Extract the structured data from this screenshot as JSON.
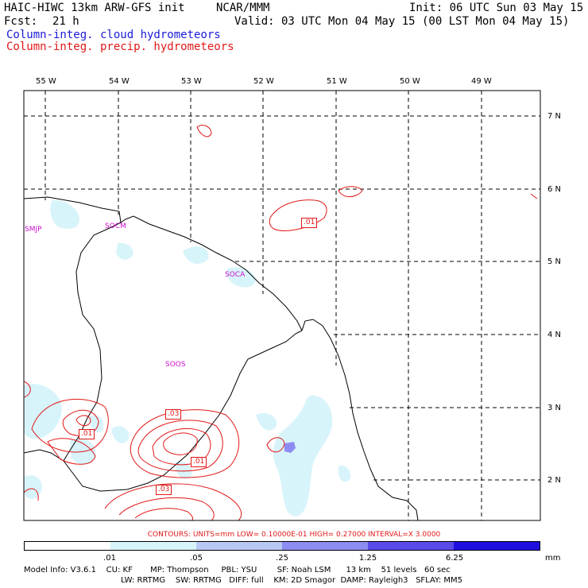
{
  "header": {
    "model": "HAIC-HIWC 13km ARW-GFS init",
    "center": "NCAR/MMM",
    "init": "Init: 06 UTC Sun 03 May 15",
    "fcst_label": "Fcst:",
    "fcst_value": "21 h",
    "valid": "Valid: 03 UTC Mon 04 May 15 (00 LST Mon 04 May 15)",
    "field_cloud": "Column-integ. cloud hydrometeors",
    "field_precip": "Column-integ. precip. hydrometeors"
  },
  "colors": {
    "cloud_title": "#1a1ad8",
    "precip": "#e01818",
    "stations": "#d010d0",
    "fill_01": "#d8f4fb",
    "fill_05": "#b9c8f3",
    "fill_25": "#8d8cf0",
    "fill_125": "#5a4ae8",
    "fill_625": "#1f10e0"
  },
  "map": {
    "lon_labels": [
      "55 W",
      "54 W",
      "53 W",
      "52 W",
      "51 W",
      "50 W",
      "49 W"
    ],
    "lat_labels": [
      "7 N",
      "6 N",
      "5 N",
      "4 N",
      "3 N",
      "2 N"
    ],
    "stations": [
      "SMJP",
      "SOCM",
      "SOCA",
      "SOOS"
    ],
    "contour_labels": [
      ".01",
      ".03",
      ".01",
      ".01",
      ".03"
    ]
  },
  "legend": {
    "contours_text": "CONTOURS:  UNITS=mm  LOW= 0.10000E-01  HIGH= 0.27000     INTERVAL=X  3.0000",
    "scale_values": [
      ".01",
      ".05",
      ".25",
      "1.25",
      "6.25"
    ],
    "units": "mm"
  },
  "model_info": {
    "line1": "Model Info: V3.6.1    CU: KF       MP: Thompson     PBL: YSU        SF: Noah LSM      13 km    51 levels   60 sec",
    "line2": "LW: RRTMG    SW: RRTMG   DIFF: full    KM: 2D Smagor  DAMP: Rayleigh3   SFLAY: MM5"
  }
}
